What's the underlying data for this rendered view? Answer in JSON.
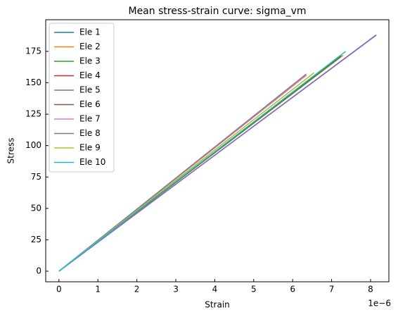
{
  "chart_data": {
    "type": "line",
    "title": "Mean stress-strain curve: sigma_vm",
    "xlabel": "Strain",
    "ylabel": "Stress",
    "x_offset_label": "1e−6",
    "xlim": [
      -3.4e-07,
      8.47e-06
    ],
    "xticks": [
      0,
      {
        "value": 1e-06,
        "label": "1"
      },
      {
        "value": 2e-06,
        "label": "2"
      },
      {
        "value": 3e-06,
        "label": "3"
      },
      {
        "value": 4e-06,
        "label": "4"
      },
      {
        "value": 5e-06,
        "label": "5"
      },
      {
        "value": 6e-06,
        "label": "6"
      },
      {
        "value": 7e-06,
        "label": "7"
      },
      {
        "value": 8e-06,
        "label": "8"
      }
    ],
    "ylim": [
      -8.4,
      200.2
    ],
    "yticks": [
      0,
      25,
      50,
      75,
      100,
      125,
      150,
      175
    ],
    "legend": "upper left",
    "grid": false,
    "series": [
      {
        "name": "Ele 1",
        "color": "#1f77b4",
        "x": [
          0,
          8.14e-06
        ],
        "values": [
          0,
          188
        ]
      },
      {
        "name": "Ele 2",
        "color": "#ff7f0e",
        "x": [
          0,
          7.3e-06
        ],
        "values": [
          0,
          172
        ]
      },
      {
        "name": "Ele 3",
        "color": "#2ca02c",
        "x": [
          0,
          7.25e-06
        ],
        "values": [
          0,
          171
        ]
      },
      {
        "name": "Ele 4",
        "color": "#d62728",
        "x": [
          0,
          7.25e-06
        ],
        "values": [
          0,
          172
        ]
      },
      {
        "name": "Ele 5",
        "color": "#9467bd",
        "x": [
          0,
          8.15e-06
        ],
        "values": [
          0,
          188
        ]
      },
      {
        "name": "Ele 6",
        "color": "#8c564b",
        "x": [
          0,
          6.35e-06
        ],
        "values": [
          0,
          156
        ]
      },
      {
        "name": "Ele 7",
        "color": "#e377c2",
        "x": [
          0,
          6.35e-06
        ],
        "values": [
          0,
          156
        ]
      },
      {
        "name": "Ele 8",
        "color": "#7f7f7f",
        "x": [
          0,
          6.35e-06
        ],
        "values": [
          0,
          157
        ]
      },
      {
        "name": "Ele 9",
        "color": "#bcbd22",
        "x": [
          0,
          6.55e-06
        ],
        "values": [
          0,
          158
        ]
      },
      {
        "name": "Ele 10",
        "color": "#17becf",
        "x": [
          0,
          7.36e-06
        ],
        "values": [
          0,
          175
        ]
      }
    ]
  }
}
